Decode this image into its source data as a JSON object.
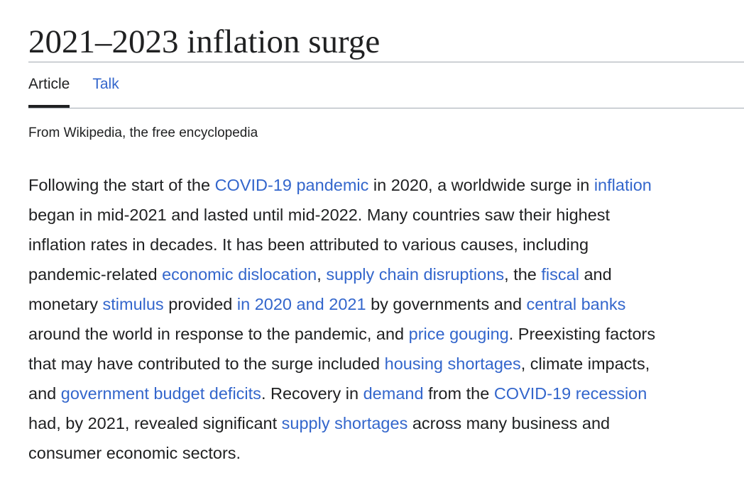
{
  "article": {
    "title": "2021–2023 inflation surge",
    "tabs": [
      {
        "label": "Article",
        "active": true
      },
      {
        "label": "Talk",
        "active": false
      }
    ],
    "tagline": "From Wikipedia, the free encyclopedia"
  },
  "lead": {
    "lines": [
      [
        {
          "text": "Following the start of the "
        },
        {
          "text": "COVID-19 pandemic",
          "link": true
        },
        {
          "text": " in 2020, a worldwide surge in "
        },
        {
          "text": "inflation",
          "link": true
        }
      ],
      [
        {
          "text": "began in mid-2021 and lasted until mid-2022. Many countries saw their highest"
        }
      ],
      [
        {
          "text": "inflation rates in decades. It has been attributed to various causes, including"
        }
      ],
      [
        {
          "text": "pandemic-related "
        },
        {
          "text": "economic dislocation",
          "link": true
        },
        {
          "text": ", "
        },
        {
          "text": "supply chain disruptions",
          "link": true
        },
        {
          "text": ", the "
        },
        {
          "text": "fiscal",
          "link": true
        },
        {
          "text": " and"
        }
      ],
      [
        {
          "text": "monetary "
        },
        {
          "text": "stimulus",
          "link": true
        },
        {
          "text": " provided "
        },
        {
          "text": "in 2020 and 2021",
          "link": true
        },
        {
          "text": " by governments and "
        },
        {
          "text": "central banks",
          "link": true
        }
      ],
      [
        {
          "text": "around the world in response to the pandemic, and "
        },
        {
          "text": "price gouging",
          "link": true
        },
        {
          "text": ". Preexisting factors"
        }
      ],
      [
        {
          "text": "that may have contributed to the surge included "
        },
        {
          "text": "housing shortages",
          "link": true
        },
        {
          "text": ", climate impacts,"
        }
      ],
      [
        {
          "text": "and "
        },
        {
          "text": "government budget deficits",
          "link": true
        },
        {
          "text": ". Recovery in "
        },
        {
          "text": "demand",
          "link": true
        },
        {
          "text": " from the "
        },
        {
          "text": "COVID-19 recession",
          "link": true
        }
      ],
      [
        {
          "text": "had, by 2021, revealed significant "
        },
        {
          "text": "supply shortages",
          "link": true
        },
        {
          "text": " across many business and"
        }
      ],
      [
        {
          "text": "consumer economic sectors."
        }
      ]
    ]
  }
}
